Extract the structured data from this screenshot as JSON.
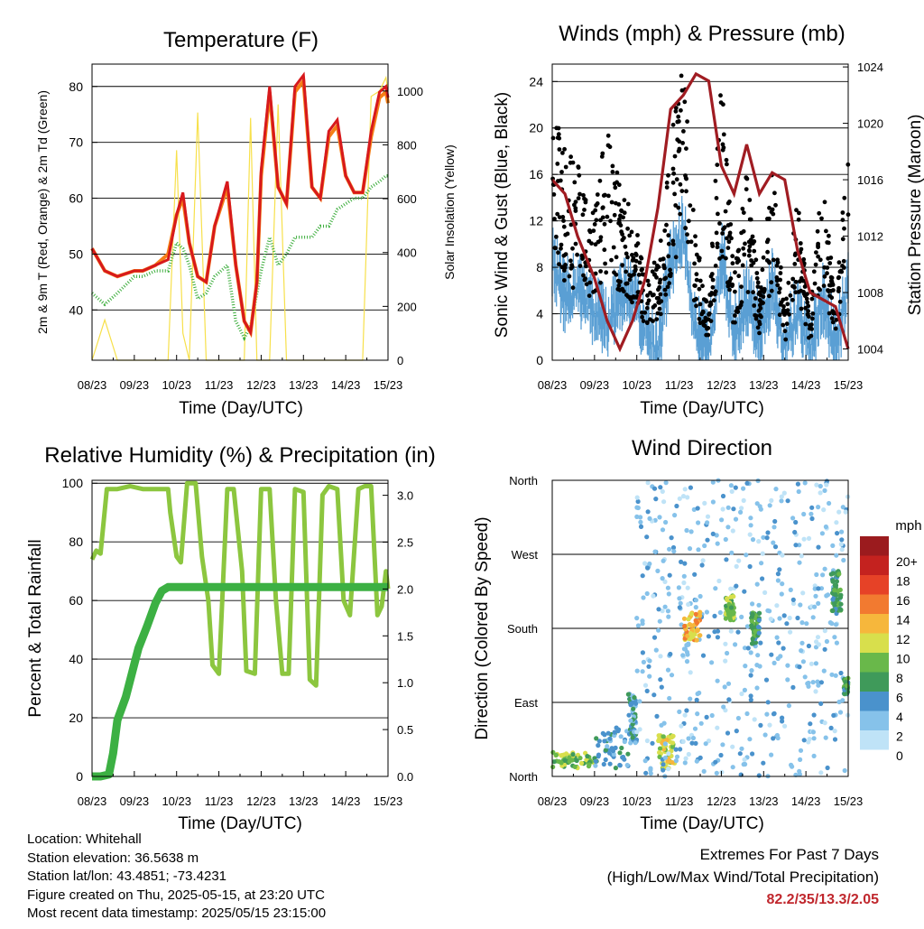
{
  "colors": {
    "temp_red": "#d7191c",
    "temp_orange": "#f57f17",
    "dewpoint_green": "#3dae3d",
    "insolation_yellow": "#f7e04b",
    "wind_blue": "#5a9fd4",
    "gust_black": "#000000",
    "pressure_maroon": "#a01c22",
    "rh_lightgreen": "#8cc63f",
    "precip_green": "#3cb043",
    "extremes_red": "#c0272d"
  },
  "time_ticks": [
    "08/23",
    "09/23",
    "10/23",
    "11/23",
    "12/23",
    "13/23",
    "14/23",
    "15/23"
  ],
  "info": {
    "location": "Location: Whitehall",
    "elevation": "Station elevation: 36.5638 m",
    "latlon": "Station lat/lon: 43.4851; -73.4231",
    "created": "Figure created on Thu, 2025-05-15, at 23:20 UTC",
    "recent": "Most recent data timestamp: 2025/05/15 23:15:00"
  },
  "extremes": {
    "title": "Extremes For Past 7 Days",
    "subtitle": "(High/Low/Max Wind/Total Precipitation)",
    "value": "82.2/35/13.3/2.05"
  },
  "chart_data": [
    {
      "type": "line",
      "title": "Temperature (F)",
      "xlabel": "Time (Day/UTC)",
      "ylabel": "2m & 9m T (Red, Orange) & 2m Td (Green)",
      "y2label": "Solar Insolation (Yellow)",
      "ylim": [
        31,
        84
      ],
      "y2lim": [
        0,
        1100
      ],
      "yticks": [
        40,
        50,
        60,
        70,
        80
      ],
      "y2ticks": [
        0,
        200,
        400,
        600,
        800,
        1000
      ],
      "x": [
        0,
        0.3,
        0.6,
        1,
        1.2,
        1.5,
        1.8,
        2.0,
        2.15,
        2.3,
        2.5,
        2.7,
        2.9,
        3.2,
        3.4,
        3.6,
        3.75,
        3.9,
        4.0,
        4.2,
        4.4,
        4.6,
        4.8,
        5.0,
        5.2,
        5.4,
        5.6,
        5.8,
        6.0,
        6.2,
        6.4,
        6.6,
        6.8,
        6.95,
        7.0
      ],
      "series": [
        {
          "name": "2m T",
          "values": [
            51,
            47,
            46,
            47,
            47,
            48,
            49,
            57,
            61,
            52,
            46,
            45,
            55,
            63,
            48,
            38,
            36,
            45,
            65,
            80,
            62,
            59,
            80,
            82,
            62,
            60,
            72,
            74,
            64,
            61,
            61,
            72,
            79,
            80,
            78
          ]
        },
        {
          "name": "9m T",
          "values": [
            51,
            47,
            46,
            47,
            47,
            48,
            50,
            57,
            60,
            52,
            46,
            45,
            55,
            62,
            48,
            38,
            36,
            45,
            64,
            79,
            62,
            59,
            79,
            81,
            62,
            60,
            71,
            73,
            64,
            61,
            61,
            71,
            78,
            79,
            77
          ]
        },
        {
          "name": "2m Td",
          "values": [
            43,
            41,
            43,
            46,
            46,
            47,
            47,
            52,
            51,
            48,
            42,
            43,
            46,
            48,
            38,
            35,
            37,
            43,
            47,
            53,
            48,
            50,
            53,
            53,
            53,
            55,
            55,
            58,
            59,
            60,
            60,
            62,
            63,
            64,
            64
          ]
        },
        {
          "name": "Solar Insolation",
          "values": [
            0,
            150,
            0,
            0,
            0,
            0,
            0,
            780,
            100,
            0,
            920,
            0,
            0,
            0,
            0,
            0,
            900,
            0,
            0,
            0,
            950,
            0,
            0,
            0,
            0,
            0,
            0,
            0,
            0,
            0,
            0,
            980,
            1000,
            1050,
            1000
          ]
        }
      ]
    },
    {
      "type": "scatter",
      "title": "Winds (mph) & Pressure (mb)",
      "xlabel": "Time (Day/UTC)",
      "ylabel": "Sonic Wind & Gust (Blue, Black)",
      "y2label": "Station Pressure (Maroon)",
      "ylim": [
        0,
        25.5
      ],
      "y2lim": [
        1003.2,
        1024.2
      ],
      "yticks": [
        0,
        4,
        8,
        12,
        16,
        20,
        24
      ],
      "y2ticks": [
        1004,
        1008,
        1012,
        1016,
        1020,
        1024
      ],
      "x": [
        0,
        0.3,
        0.6,
        1,
        1.3,
        1.6,
        1.9,
        2.2,
        2.5,
        2.8,
        3.1,
        3.4,
        3.7,
        4.0,
        4.3,
        4.6,
        4.9,
        5.2,
        5.5,
        5.8,
        6.1,
        6.4,
        6.7,
        7.0
      ],
      "series": [
        {
          "name": "Sonic Wind",
          "values": [
            9,
            6,
            7,
            5,
            4,
            6,
            7,
            3,
            2,
            9,
            12,
            3,
            2,
            10,
            3,
            6,
            3,
            7,
            2,
            5,
            2,
            6,
            2,
            7
          ]
        },
        {
          "name": "Gust",
          "values": [
            16,
            13,
            12,
            9,
            15,
            11,
            9,
            6,
            6,
            14,
            20,
            8,
            3,
            18,
            5,
            12,
            4,
            12,
            3,
            10,
            3,
            12,
            3,
            14
          ]
        },
        {
          "name": "Station Pressure",
          "values": [
            1016,
            1015,
            1012,
            1009,
            1006,
            1004,
            1006,
            1009,
            1014,
            1021,
            1022,
            1023.5,
            1023,
            1017,
            1015,
            1018.5,
            1015,
            1016.5,
            1016,
            1011,
            1008,
            1007.5,
            1007,
            1004
          ]
        }
      ]
    },
    {
      "type": "line",
      "title": "Relative Humidity (%) & Precipitation (in)",
      "xlabel": "Time (Day/UTC)",
      "ylabel": "Percent & Total Rainfall",
      "ylim": [
        0,
        101
      ],
      "y2lim": [
        0,
        3.16
      ],
      "yticks": [
        0,
        20,
        40,
        60,
        80,
        100
      ],
      "y2ticks": [
        0.0,
        0.5,
        1.0,
        1.5,
        2.0,
        2.5,
        3.0
      ],
      "series": [
        {
          "name": "Relative Humidity",
          "x": [
            0,
            0.1,
            0.2,
            0.35,
            0.6,
            0.9,
            1.2,
            1.6,
            1.8,
            1.85,
            2.0,
            2.1,
            2.25,
            2.45,
            2.6,
            2.75,
            2.85,
            3.0,
            3.2,
            3.35,
            3.55,
            3.65,
            3.85,
            4.0,
            4.2,
            4.35,
            4.5,
            4.65,
            4.8,
            5.0,
            5.15,
            5.3,
            5.45,
            5.6,
            5.8,
            5.95,
            6.1,
            6.3,
            6.45,
            6.6,
            6.75,
            6.85,
            6.95,
            7.0
          ],
          "values": [
            74,
            77,
            76,
            98,
            98,
            99,
            98,
            98,
            98,
            90,
            75,
            73,
            100,
            100,
            75,
            60,
            38,
            35,
            98,
            98,
            70,
            36,
            35,
            98,
            98,
            60,
            35,
            35,
            98,
            97,
            33,
            31,
            96,
            99,
            98,
            60,
            55,
            98,
            99,
            99,
            55,
            58,
            70,
            64
          ]
        },
        {
          "name": "Total Rainfall",
          "x": [
            0,
            0.2,
            0.4,
            0.5,
            0.6,
            0.8,
            1.0,
            1.1,
            1.3,
            1.5,
            1.65,
            1.8,
            2.0,
            3.0,
            4.0,
            5.0,
            6.0,
            7.0
          ],
          "values": [
            0,
            0,
            0.02,
            0.25,
            0.6,
            0.85,
            1.2,
            1.37,
            1.6,
            1.85,
            1.98,
            2.02,
            2.02,
            2.02,
            2.02,
            2.02,
            2.02,
            2.02
          ]
        }
      ]
    },
    {
      "type": "scatter",
      "title": "Wind Direction",
      "xlabel": "Time (Day/UTC)",
      "ylabel": "Direction (Colored By Speed)",
      "yticks": [
        "North",
        "East",
        "South",
        "West",
        "North"
      ],
      "ytick_degrees": [
        0,
        90,
        180,
        270,
        360
      ],
      "legend_title": "mph",
      "legend_labels": [
        "0",
        "2",
        "4",
        "6",
        "8",
        "10",
        "12",
        "14",
        "16",
        "18",
        "20+"
      ],
      "legend_colors": [
        "#bfe3f7",
        "#86c2ea",
        "#4a92cc",
        "#3f9a5a",
        "#69b84a",
        "#d8df4c",
        "#f6b73c",
        "#f27a30",
        "#e64227",
        "#c4221f",
        "#9b1b1e"
      ],
      "clusters": [
        {
          "x": [
            0.0,
            1.0
          ],
          "dir": [
            10,
            30
          ],
          "speed": 8
        },
        {
          "x": [
            1.0,
            1.8
          ],
          "dir": [
            10,
            60
          ],
          "speed": 4
        },
        {
          "x": [
            1.8,
            2.0
          ],
          "dir": [
            40,
            100
          ],
          "speed": 4
        },
        {
          "x": [
            2.5,
            2.9
          ],
          "dir": [
            10,
            50
          ],
          "speed": 10
        },
        {
          "x": [
            2.0,
            7.0
          ],
          "dir": [
            0,
            360
          ],
          "speed": 2
        },
        {
          "x": [
            3.1,
            3.5
          ],
          "dir": [
            165,
            200
          ],
          "speed": 12
        },
        {
          "x": [
            4.1,
            4.3
          ],
          "dir": [
            190,
            220
          ],
          "speed": 8
        },
        {
          "x": [
            4.7,
            4.9
          ],
          "dir": [
            160,
            200
          ],
          "speed": 6
        },
        {
          "x": [
            6.6,
            6.85
          ],
          "dir": [
            200,
            250
          ],
          "speed": 6
        },
        {
          "x": [
            6.9,
            7.0
          ],
          "dir": [
            100,
            120
          ],
          "speed": 6
        }
      ]
    }
  ]
}
